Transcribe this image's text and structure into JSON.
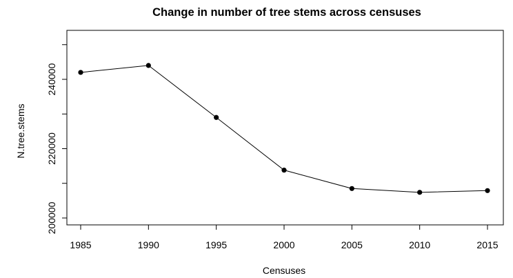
{
  "chart_data": {
    "type": "line",
    "title": "Change in number of tree stems across censuses",
    "xlabel": "Censuses",
    "ylabel": "N.tree.stems",
    "x": [
      1985,
      1990,
      1995,
      2000,
      2005,
      2010,
      2015
    ],
    "y": [
      242000,
      244000,
      229000,
      213800,
      208500,
      207400,
      207900
    ],
    "xticks": [
      "1985",
      "1990",
      "1995",
      "2000",
      "2005",
      "2010",
      "2015"
    ],
    "yticks": [
      200000,
      220000,
      240000
    ],
    "yticklabels": [
      "200000",
      "220000",
      "240000"
    ],
    "ylim": [
      200000,
      250000
    ],
    "grid": false,
    "legend": "none",
    "marker": "filled-circle",
    "line_color": "#000000"
  }
}
